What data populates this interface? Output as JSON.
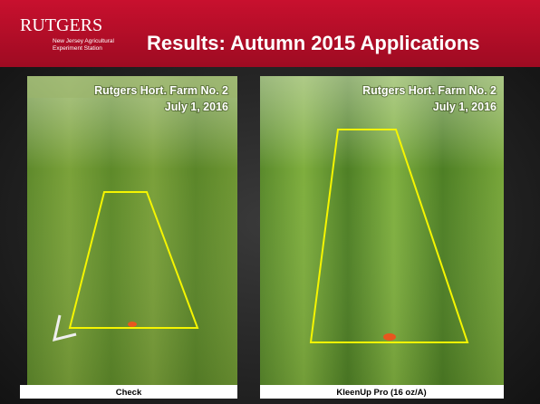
{
  "header": {
    "logo": "RUTGERS",
    "logo_sub": [
      "New Jersey Agricultural",
      "Experiment Station"
    ],
    "title": "Results: Autumn 2015 Applications"
  },
  "panels": [
    {
      "location": "Rutgers Hort. Farm No. 2",
      "date": "July 1, 2016",
      "caption": "Check"
    },
    {
      "location": "Rutgers Hort. Farm No. 2",
      "date": "July 1, 2016",
      "caption": "KleenUp Pro (16 oz/A)"
    }
  ]
}
